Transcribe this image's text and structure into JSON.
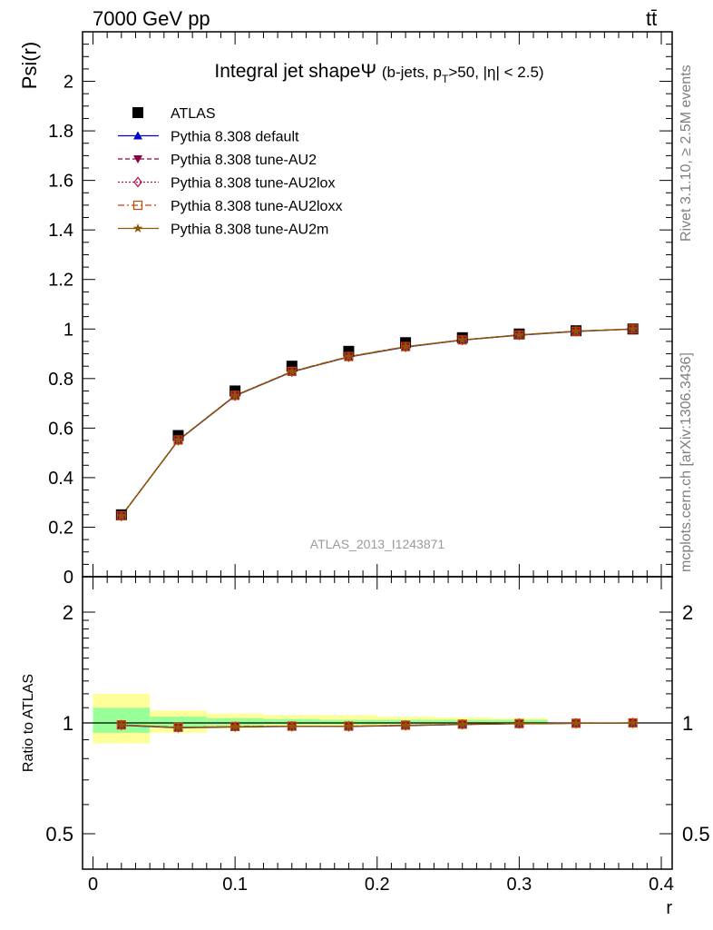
{
  "header": {
    "left": "7000 GeV pp",
    "right": "tt̄"
  },
  "side_texts": {
    "rivet": "Rivet 3.1.10, ≥ 2.5M events",
    "mcplots": "mcplots.cern.ch [arXiv:1306.3436]"
  },
  "watermark": "ATLAS_2013_I1243871",
  "chart_data": [
    {
      "type": "line",
      "title": "Integral jet shapeΨ",
      "subtitle": "(b-jets, p_T>50, |η| < 2.5)",
      "ylabel": "Psi(r)",
      "xlabel": "",
      "xlim": [
        0,
        0.4
      ],
      "ylim": [
        0,
        2.2
      ],
      "yticks": [
        "0",
        "0.2",
        "0.4",
        "0.6",
        "0.8",
        "1",
        "1.2",
        "1.4",
        "1.6",
        "1.8",
        "2"
      ],
      "legend_position": "top-left",
      "x": [
        0.02,
        0.06,
        0.1,
        0.14,
        0.18,
        0.22,
        0.26,
        0.3,
        0.34,
        0.38
      ],
      "series": [
        {
          "name": "ATLAS",
          "color": "#000000",
          "marker": "square",
          "values": [
            0.25,
            0.57,
            0.75,
            0.85,
            0.91,
            0.945,
            0.965,
            0.98,
            0.993,
            1.0
          ]
        },
        {
          "name": "Pythia 8.308 default",
          "color": "#0000cc",
          "marker": "triangle-up",
          "line": "solid",
          "values": [
            0.245,
            0.55,
            0.73,
            0.827,
            0.887,
            0.927,
            0.955,
            0.975,
            0.99,
            1.0
          ]
        },
        {
          "name": "Pythia 8.308 tune-AU2",
          "color": "#8b0040",
          "marker": "triangle-down",
          "line": "dashed",
          "values": [
            0.245,
            0.551,
            0.731,
            0.828,
            0.888,
            0.928,
            0.956,
            0.976,
            0.991,
            1.0
          ]
        },
        {
          "name": "Pythia 8.308 tune-AU2lox",
          "color": "#b01040",
          "marker": "diamond-open",
          "line": "dotted",
          "values": [
            0.245,
            0.551,
            0.731,
            0.828,
            0.888,
            0.928,
            0.956,
            0.976,
            0.991,
            1.0
          ]
        },
        {
          "name": "Pythia 8.308 tune-AU2loxx",
          "color": "#cc4400",
          "marker": "square-open",
          "line": "dashdot",
          "values": [
            0.246,
            0.552,
            0.732,
            0.829,
            0.889,
            0.929,
            0.956,
            0.976,
            0.991,
            1.0
          ]
        },
        {
          "name": "Pythia 8.308 tune-AU2m",
          "color": "#8b5a00",
          "marker": "star",
          "line": "solid",
          "values": [
            0.245,
            0.551,
            0.731,
            0.828,
            0.888,
            0.928,
            0.956,
            0.976,
            0.991,
            1.0
          ]
        }
      ]
    },
    {
      "type": "line",
      "title": "",
      "ylabel": "Ratio to ATLAS",
      "xlabel": "r",
      "xlim": [
        0,
        0.4
      ],
      "ylim": [
        0.4,
        2.3
      ],
      "ylog": true,
      "xticks": [
        "0",
        "0.1",
        "0.2",
        "0.3",
        "0.4"
      ],
      "yticks": [
        "0.5",
        "1",
        "2"
      ],
      "x": [
        0.02,
        0.06,
        0.1,
        0.14,
        0.18,
        0.22,
        0.26,
        0.3,
        0.34,
        0.38
      ],
      "bins": [
        [
          0.0,
          0.04
        ],
        [
          0.04,
          0.08
        ],
        [
          0.08,
          0.12
        ],
        [
          0.12,
          0.16
        ],
        [
          0.16,
          0.2
        ],
        [
          0.2,
          0.24
        ],
        [
          0.24,
          0.28
        ],
        [
          0.28,
          0.32
        ],
        [
          0.32,
          0.36
        ],
        [
          0.36,
          0.4
        ]
      ],
      "band_stat": {
        "color": "#99ff99",
        "lo": [
          0.94,
          0.975,
          0.985,
          0.99,
          0.99,
          0.993,
          0.995,
          0.995,
          1.0,
          1.0
        ],
        "hi": [
          1.1,
          1.04,
          1.03,
          1.025,
          1.02,
          1.02,
          1.02,
          1.02,
          1.0,
          1.0
        ]
      },
      "band_total": {
        "color": "#ffff99",
        "lo": [
          0.88,
          0.94,
          0.965,
          0.975,
          0.98,
          0.985,
          0.99,
          0.99,
          1.0,
          1.0
        ],
        "hi": [
          1.2,
          1.08,
          1.06,
          1.05,
          1.05,
          1.04,
          1.035,
          1.03,
          1.0,
          1.0
        ]
      },
      "series": [
        {
          "name": "Pythia 8.308 default",
          "color": "#0000cc",
          "values": [
            0.985,
            0.97,
            0.975,
            0.978,
            0.978,
            0.983,
            0.99,
            0.995,
            0.997,
            1.0
          ]
        },
        {
          "name": "Pythia 8.308 tune-AU2",
          "color": "#8b0040",
          "values": [
            0.987,
            0.972,
            0.977,
            0.979,
            0.979,
            0.985,
            0.991,
            0.996,
            0.998,
            1.0
          ]
        },
        {
          "name": "Pythia 8.308 tune-AU2lox",
          "color": "#b01040",
          "values": [
            0.987,
            0.972,
            0.977,
            0.979,
            0.979,
            0.985,
            0.991,
            0.996,
            0.998,
            1.0
          ]
        },
        {
          "name": "Pythia 8.308 tune-AU2loxx",
          "color": "#cc4400",
          "values": [
            0.988,
            0.973,
            0.978,
            0.98,
            0.98,
            0.986,
            0.992,
            0.996,
            0.998,
            1.0
          ]
        },
        {
          "name": "Pythia 8.308 tune-AU2m",
          "color": "#8b5a00",
          "values": [
            0.987,
            0.972,
            0.977,
            0.979,
            0.979,
            0.985,
            0.991,
            0.996,
            0.998,
            1.0
          ]
        }
      ]
    }
  ]
}
